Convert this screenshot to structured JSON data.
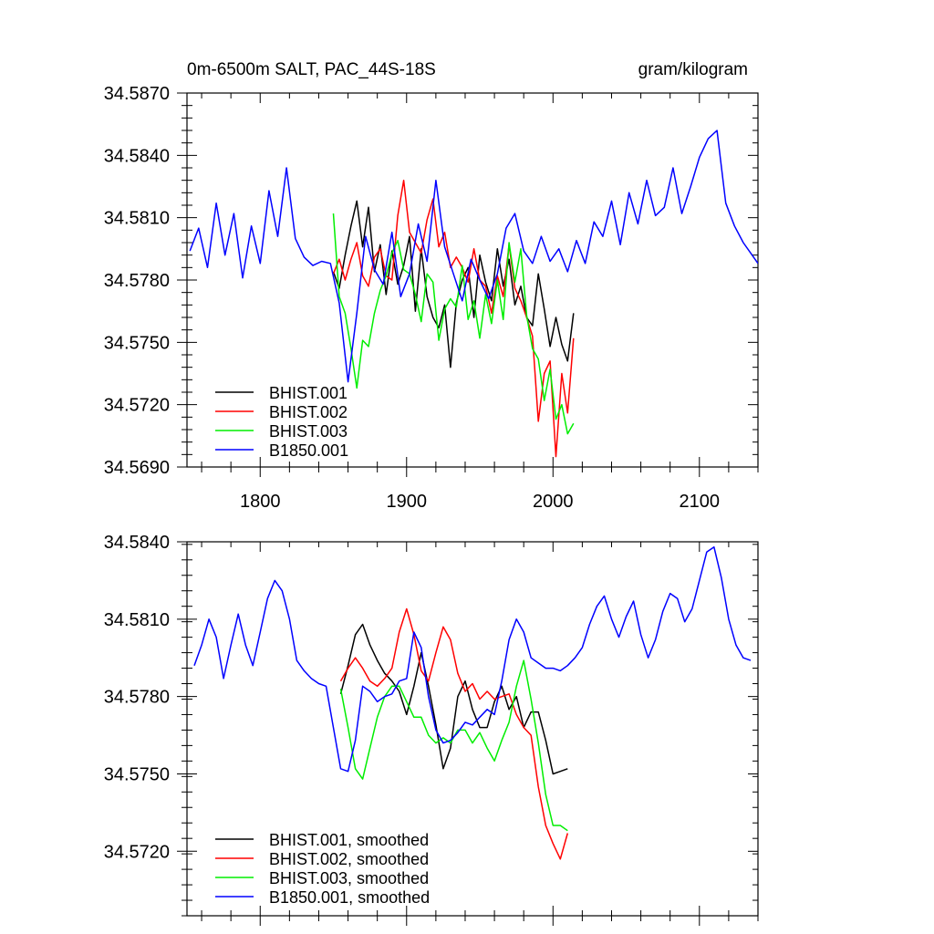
{
  "chart_data": [
    {
      "type": "line",
      "title_left": "0m-6500m SALT, PAC_44S-18S",
      "title_right": "gram/kilogram",
      "xlabel": "",
      "ylabel": "",
      "xlim": [
        1750,
        2140
      ],
      "ylim": [
        34.569,
        34.587
      ],
      "x_ticks": [
        1800,
        1900,
        2000,
        2100
      ],
      "x_tick_labels": [
        "1800",
        "1900",
        "2000",
        "2100"
      ],
      "y_ticks": [
        34.569,
        34.572,
        34.575,
        34.578,
        34.581,
        34.584,
        34.587
      ],
      "y_tick_labels": [
        "34.5690",
        "34.5720",
        "34.5750",
        "34.5780",
        "34.5810",
        "34.5840",
        "34.5870"
      ],
      "legend_position": "bottom-left",
      "grid": false,
      "series": [
        {
          "name": "BHIST.001",
          "color": "#000000",
          "x": [
            1850,
            1854,
            1858,
            1862,
            1866,
            1870,
            1874,
            1878,
            1882,
            1886,
            1890,
            1894,
            1898,
            1902,
            1906,
            1910,
            1914,
            1918,
            1922,
            1926,
            1930,
            1934,
            1938,
            1942,
            1946,
            1950,
            1954,
            1958,
            1962,
            1966,
            1970,
            1974,
            1978,
            1982,
            1986,
            1990,
            1994,
            1998,
            2002,
            2006,
            2010,
            2014
          ],
          "values": [
            34.5784,
            34.5776,
            34.5792,
            34.5806,
            34.5818,
            34.5796,
            34.5815,
            34.5784,
            34.5797,
            34.5773,
            34.5794,
            34.5778,
            34.5787,
            34.5801,
            34.5765,
            34.5795,
            34.5772,
            34.5762,
            34.5757,
            34.5768,
            34.5738,
            34.5769,
            34.578,
            34.5786,
            34.5762,
            34.5792,
            34.5779,
            34.577,
            34.5795,
            34.5777,
            34.579,
            34.5768,
            34.5777,
            34.5762,
            34.5758,
            34.5783,
            34.5766,
            34.5748,
            34.5762,
            34.5749,
            34.5741,
            34.5764
          ]
        },
        {
          "name": "BHIST.002",
          "color": "#ff0000",
          "x": [
            1850,
            1854,
            1858,
            1862,
            1866,
            1870,
            1874,
            1878,
            1882,
            1886,
            1890,
            1894,
            1898,
            1902,
            1906,
            1910,
            1914,
            1918,
            1922,
            1926,
            1930,
            1934,
            1938,
            1942,
            1946,
            1950,
            1954,
            1958,
            1962,
            1966,
            1970,
            1974,
            1978,
            1982,
            1986,
            1990,
            1994,
            1998,
            2002,
            2006,
            2010,
            2014
          ],
          "values": [
            34.5783,
            34.579,
            34.578,
            34.579,
            34.5798,
            34.5782,
            34.5777,
            34.5791,
            34.5795,
            34.5782,
            34.578,
            34.5811,
            34.5828,
            34.5803,
            34.5798,
            34.5793,
            34.5809,
            34.5819,
            34.5796,
            34.5803,
            34.5786,
            34.5791,
            34.5786,
            34.5779,
            34.5795,
            34.578,
            34.5777,
            34.5764,
            34.5782,
            34.5772,
            34.5797,
            34.5776,
            34.577,
            34.5762,
            34.5753,
            34.5712,
            34.5735,
            34.5741,
            34.5695,
            34.5735,
            34.5716,
            34.5752
          ]
        },
        {
          "name": "BHIST.003",
          "color": "#00ee00",
          "x": [
            1850,
            1854,
            1858,
            1862,
            1866,
            1870,
            1874,
            1878,
            1882,
            1886,
            1890,
            1894,
            1898,
            1902,
            1906,
            1910,
            1914,
            1918,
            1922,
            1926,
            1930,
            1934,
            1938,
            1942,
            1946,
            1950,
            1954,
            1958,
            1962,
            1966,
            1970,
            1974,
            1978,
            1982,
            1986,
            1990,
            1994,
            1998,
            2002,
            2006,
            2010,
            2014
          ],
          "values": [
            34.5812,
            34.5772,
            34.5764,
            34.5747,
            34.5728,
            34.5751,
            34.5748,
            34.5764,
            34.5775,
            34.5782,
            34.5793,
            34.5799,
            34.5785,
            34.5783,
            34.5773,
            34.576,
            34.5783,
            34.5779,
            34.5751,
            34.5766,
            34.5771,
            34.5767,
            34.5787,
            34.5761,
            34.577,
            34.5752,
            34.5773,
            34.5759,
            34.578,
            34.5761,
            34.5798,
            34.5779,
            34.5795,
            34.5763,
            34.5747,
            34.5742,
            34.5722,
            34.5737,
            34.5713,
            34.572,
            34.5706,
            34.5711
          ]
        },
        {
          "name": "B1850.001",
          "color": "#0000ff",
          "x": [
            1752,
            1758,
            1764,
            1770,
            1776,
            1782,
            1788,
            1794,
            1800,
            1806,
            1812,
            1818,
            1824,
            1830,
            1836,
            1842,
            1848,
            1854,
            1860,
            1866,
            1872,
            1878,
            1884,
            1890,
            1896,
            1902,
            1908,
            1914,
            1920,
            1926,
            1932,
            1938,
            1944,
            1950,
            1956,
            1962,
            1968,
            1974,
            1980,
            1986,
            1992,
            1998,
            2004,
            2010,
            2016,
            2022,
            2028,
            2034,
            2040,
            2046,
            2052,
            2058,
            2064,
            2070,
            2076,
            2082,
            2088,
            2094,
            2100,
            2106,
            2112,
            2118,
            2124,
            2130,
            2136,
            2140
          ],
          "values": [
            34.5794,
            34.5805,
            34.5786,
            34.5817,
            34.5792,
            34.5812,
            34.5781,
            34.5806,
            34.5788,
            34.5823,
            34.5801,
            34.5834,
            34.58,
            34.5791,
            34.5787,
            34.5789,
            34.5788,
            34.5769,
            34.5731,
            34.5764,
            34.5801,
            34.5785,
            34.5778,
            34.5803,
            34.5772,
            34.5783,
            34.5807,
            34.5789,
            34.5828,
            34.5796,
            34.5783,
            34.577,
            34.579,
            34.578,
            34.5771,
            34.5783,
            34.5805,
            34.5812,
            34.5794,
            34.5788,
            34.5801,
            34.5789,
            34.5795,
            34.5784,
            34.5799,
            34.5788,
            34.5808,
            34.5801,
            34.5818,
            34.5797,
            34.5822,
            34.5807,
            34.5828,
            34.5811,
            34.5815,
            34.5834,
            34.5812,
            34.5825,
            34.5839,
            34.5848,
            34.5852,
            34.5817,
            34.5806,
            34.5798,
            34.5792,
            34.5788
          ]
        }
      ]
    },
    {
      "type": "line",
      "xlabel": "",
      "ylabel": "",
      "xlim": [
        1750,
        2140
      ],
      "ylim": [
        34.5695,
        34.584
      ],
      "x_ticks": [
        1800,
        1900,
        2000,
        2100
      ],
      "y_ticks": [
        34.572,
        34.575,
        34.578,
        34.581,
        34.584
      ],
      "y_tick_labels": [
        "34.5720",
        "34.5750",
        "34.5780",
        "34.5810",
        "34.5840"
      ],
      "legend_position": "bottom-left",
      "grid": false,
      "series": [
        {
          "name": "BHIST.001, smoothed",
          "color": "#000000",
          "x": [
            1855,
            1860,
            1865,
            1870,
            1875,
            1880,
            1885,
            1890,
            1895,
            1900,
            1905,
            1910,
            1915,
            1920,
            1925,
            1930,
            1935,
            1940,
            1945,
            1950,
            1955,
            1960,
            1965,
            1970,
            1975,
            1980,
            1985,
            1990,
            1995,
            2000,
            2005,
            2010
          ],
          "values": [
            34.5781,
            34.5792,
            34.5804,
            34.5808,
            34.58,
            34.5794,
            34.5789,
            34.5786,
            34.5782,
            34.5773,
            34.5784,
            34.5797,
            34.5784,
            34.5769,
            34.5752,
            34.576,
            34.578,
            34.5786,
            34.5775,
            34.5768,
            34.5768,
            34.5778,
            34.5784,
            34.5775,
            34.578,
            34.5768,
            34.5774,
            34.5774,
            34.5763,
            34.575,
            34.5751,
            34.5752
          ]
        },
        {
          "name": "BHIST.002, smoothed",
          "color": "#ff0000",
          "x": [
            1855,
            1860,
            1865,
            1870,
            1875,
            1880,
            1885,
            1890,
            1895,
            1900,
            1905,
            1910,
            1915,
            1920,
            1925,
            1930,
            1935,
            1940,
            1945,
            1950,
            1955,
            1960,
            1965,
            1970,
            1975,
            1980,
            1985,
            1990,
            1995,
            2000,
            2005,
            2010
          ],
          "values": [
            34.5786,
            34.5791,
            34.5795,
            34.5791,
            34.5786,
            34.5784,
            34.5787,
            34.5791,
            34.5805,
            34.5814,
            34.5804,
            34.579,
            34.5786,
            34.5797,
            34.5807,
            34.5802,
            34.5789,
            34.5782,
            34.5785,
            34.5779,
            34.5782,
            34.5779,
            34.578,
            34.5781,
            34.5773,
            34.5768,
            34.5765,
            34.5745,
            34.573,
            34.5723,
            34.5717,
            34.5727
          ]
        },
        {
          "name": "BHIST.003, smoothed",
          "color": "#00ee00",
          "x": [
            1855,
            1860,
            1865,
            1870,
            1875,
            1880,
            1885,
            1890,
            1895,
            1900,
            1905,
            1910,
            1915,
            1920,
            1925,
            1930,
            1935,
            1940,
            1945,
            1950,
            1955,
            1960,
            1965,
            1970,
            1975,
            1980,
            1985,
            1990,
            1995,
            2000,
            2005,
            2010
          ],
          "values": [
            34.5783,
            34.5768,
            34.5752,
            34.5748,
            34.576,
            34.5772,
            34.578,
            34.5784,
            34.5784,
            34.5778,
            34.5772,
            34.5772,
            34.5765,
            34.5762,
            34.5764,
            34.5762,
            34.5767,
            34.5767,
            34.5762,
            34.5766,
            34.576,
            34.5755,
            34.5763,
            34.577,
            34.5784,
            34.5794,
            34.5779,
            34.5762,
            34.5742,
            34.573,
            34.573,
            34.5728
          ]
        },
        {
          "name": "B1850.001, smoothed",
          "color": "#0000ff",
          "x": [
            1755,
            1760,
            1765,
            1770,
            1775,
            1780,
            1785,
            1790,
            1795,
            1800,
            1805,
            1810,
            1815,
            1820,
            1825,
            1830,
            1835,
            1840,
            1845,
            1850,
            1855,
            1860,
            1865,
            1870,
            1875,
            1880,
            1885,
            1890,
            1895,
            1900,
            1905,
            1910,
            1915,
            1920,
            1925,
            1930,
            1935,
            1940,
            1945,
            1950,
            1955,
            1960,
            1965,
            1970,
            1975,
            1980,
            1985,
            1990,
            1995,
            2000,
            2005,
            2010,
            2015,
            2020,
            2025,
            2030,
            2035,
            2040,
            2045,
            2050,
            2055,
            2060,
            2065,
            2070,
            2075,
            2080,
            2085,
            2090,
            2095,
            2100,
            2105,
            2110,
            2115,
            2120,
            2125,
            2130,
            2135
          ],
          "values": [
            34.5792,
            34.58,
            34.581,
            34.5803,
            34.5787,
            34.58,
            34.5812,
            34.58,
            34.5792,
            34.5805,
            34.5818,
            34.5825,
            34.5821,
            34.581,
            34.5794,
            34.579,
            34.5787,
            34.5785,
            34.5784,
            34.5768,
            34.5752,
            34.5751,
            34.5763,
            34.5784,
            34.5782,
            34.5778,
            34.578,
            34.5781,
            34.5786,
            34.5787,
            34.5805,
            34.5799,
            34.578,
            34.5767,
            34.5762,
            34.5763,
            34.5766,
            34.577,
            34.5769,
            34.5772,
            34.5775,
            34.5773,
            34.5786,
            34.5802,
            34.581,
            34.5805,
            34.5795,
            34.5793,
            34.5791,
            34.5791,
            34.579,
            34.5792,
            34.5795,
            34.5799,
            34.5808,
            34.5815,
            34.5819,
            34.581,
            34.5803,
            34.5811,
            34.5817,
            34.5804,
            34.5795,
            34.5802,
            34.5813,
            34.582,
            34.5818,
            34.5809,
            34.5814,
            34.5825,
            34.5836,
            34.5838,
            34.5826,
            34.581,
            34.58,
            34.5795,
            34.5794
          ]
        }
      ]
    }
  ]
}
